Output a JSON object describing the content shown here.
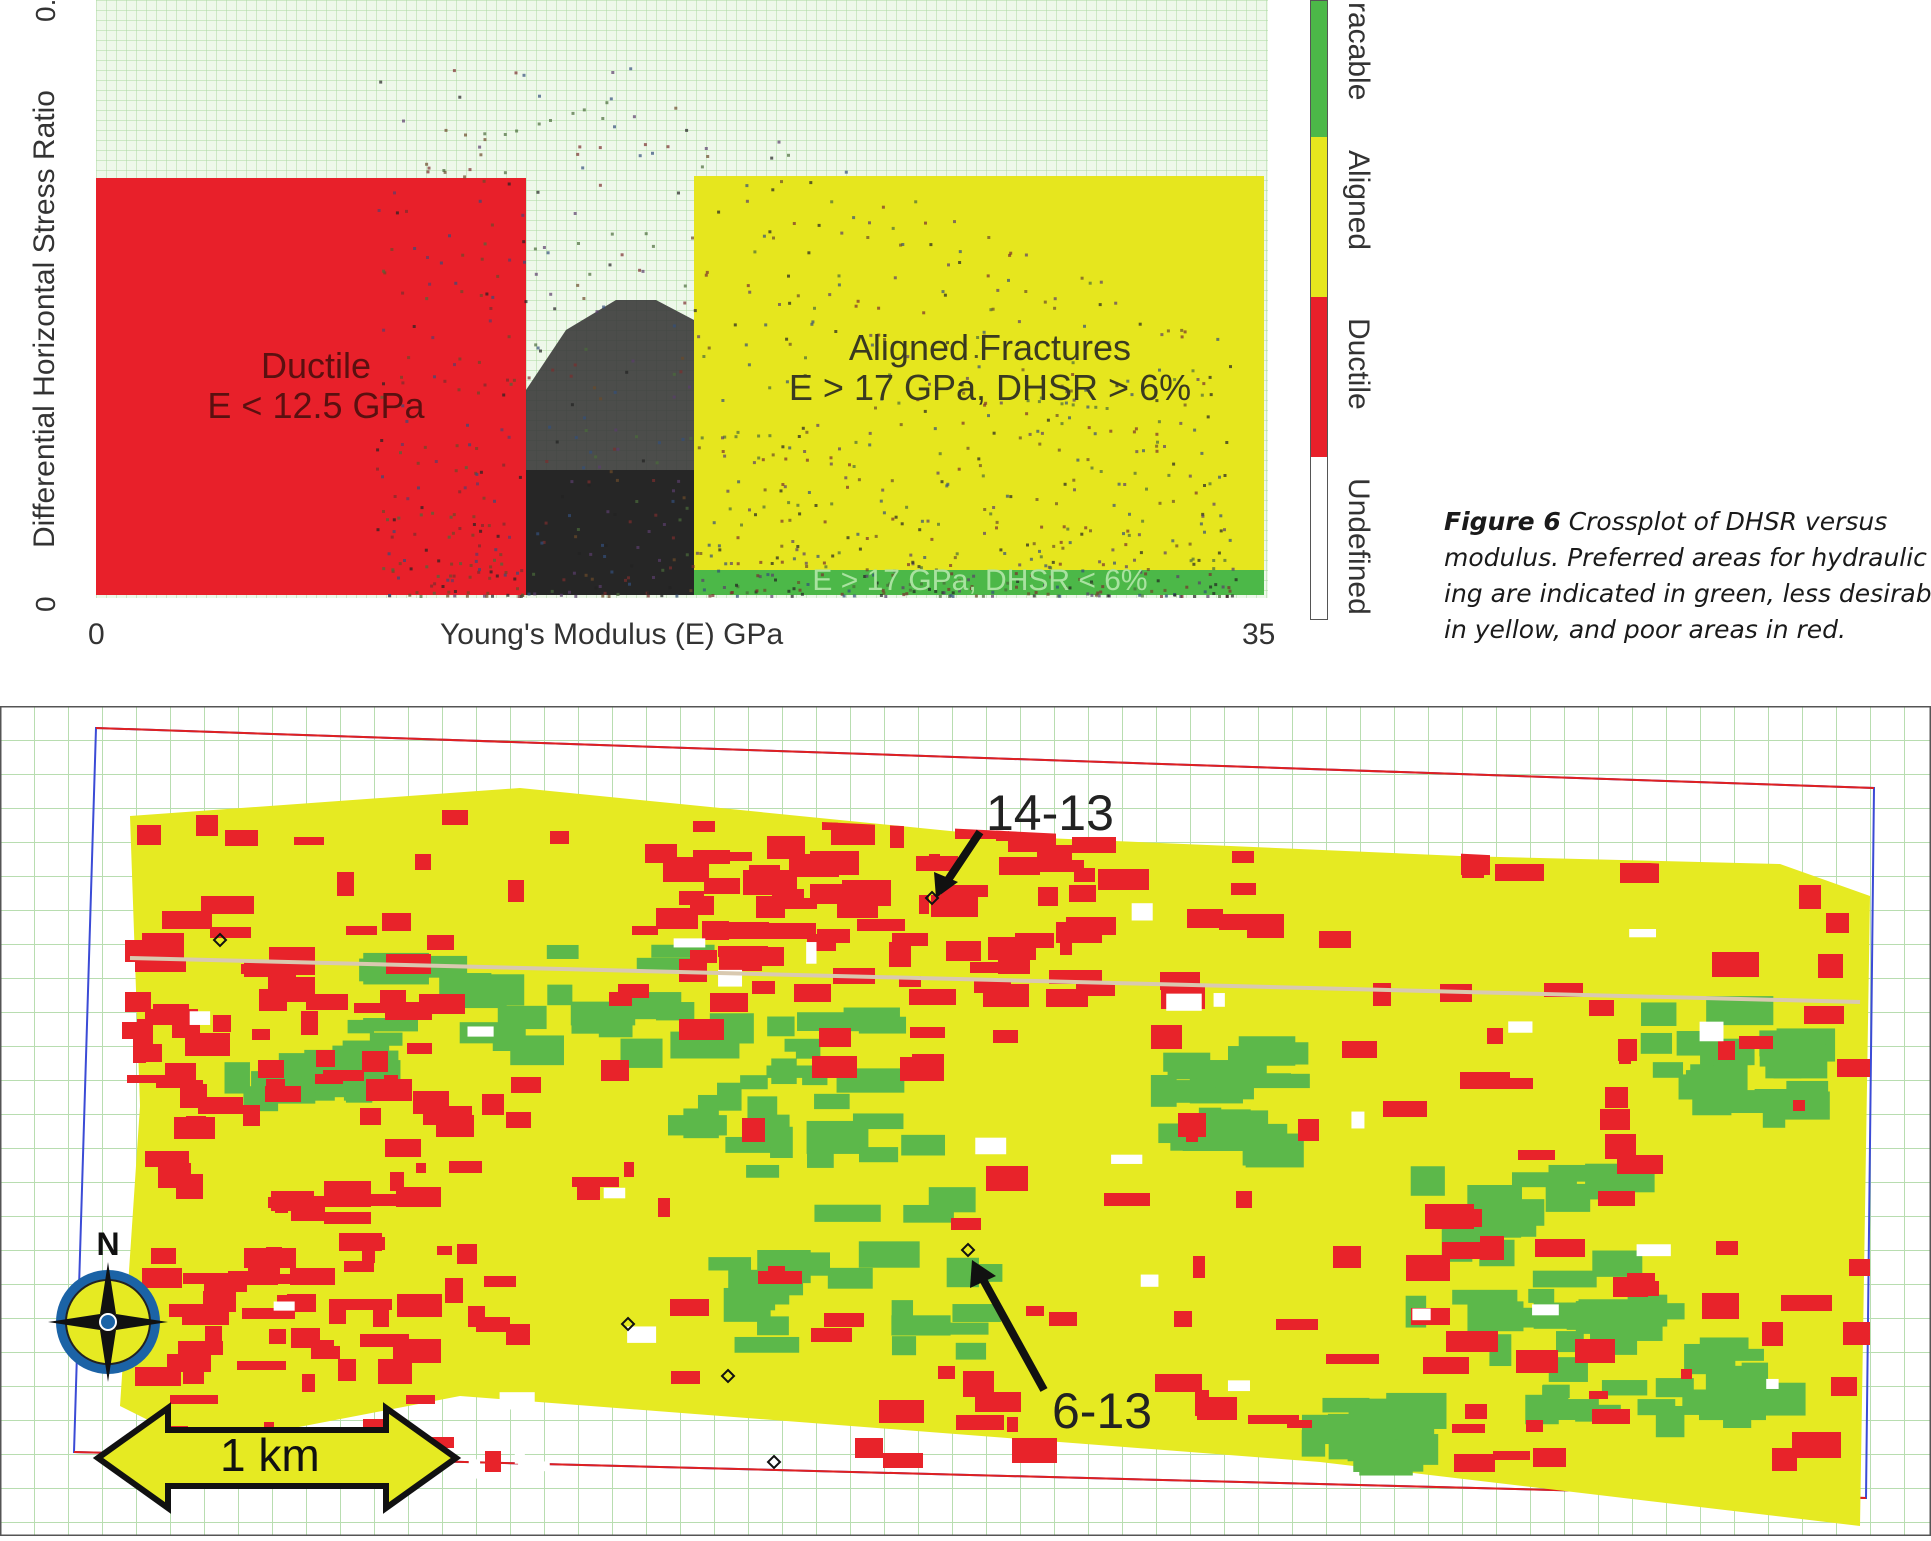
{
  "crossplot": {
    "y_axis_label": "Differential Horizontal Stress Ratio",
    "y_tick_bottom": "0",
    "y_tick_top": "0.",
    "x_axis_label": "Young's Modulus (E) GPa",
    "x_tick_left": "0",
    "x_tick_right": "35",
    "zones": {
      "ductile_title": "Ductile",
      "ductile_condition": "E < 12.5 GPa",
      "aligned_title": "Aligned Fractures",
      "aligned_condition": "E > 17 GPa, DHSR > 6%",
      "fracable_condition": "E > 17 GPa, DHSR < 6%"
    },
    "colorbar": {
      "labels": [
        "racable",
        "Aligned",
        "Ductile",
        "Undefined"
      ],
      "colors": {
        "fracable": "#4cb848",
        "aligned": "#e6e61e",
        "ductile": "#e8202a",
        "undefined": "#ffffff"
      }
    }
  },
  "caption": {
    "figure_label": "Figure 6",
    "line1": "Crossplot of DHSR versus",
    "line2": "modulus. Preferred areas for hydraulic",
    "line3": "ing are indicated in green, less desirab",
    "line4": "in yellow, and poor areas in red."
  },
  "map": {
    "well_14_13": "14-13",
    "well_6_13": "6-13",
    "scale_label": "1 km",
    "north_label": "N",
    "colors": {
      "good": "#5cb84a",
      "fair": "#e6ea22",
      "poor": "#e8232a",
      "grid": "#b8ddb0"
    }
  }
}
